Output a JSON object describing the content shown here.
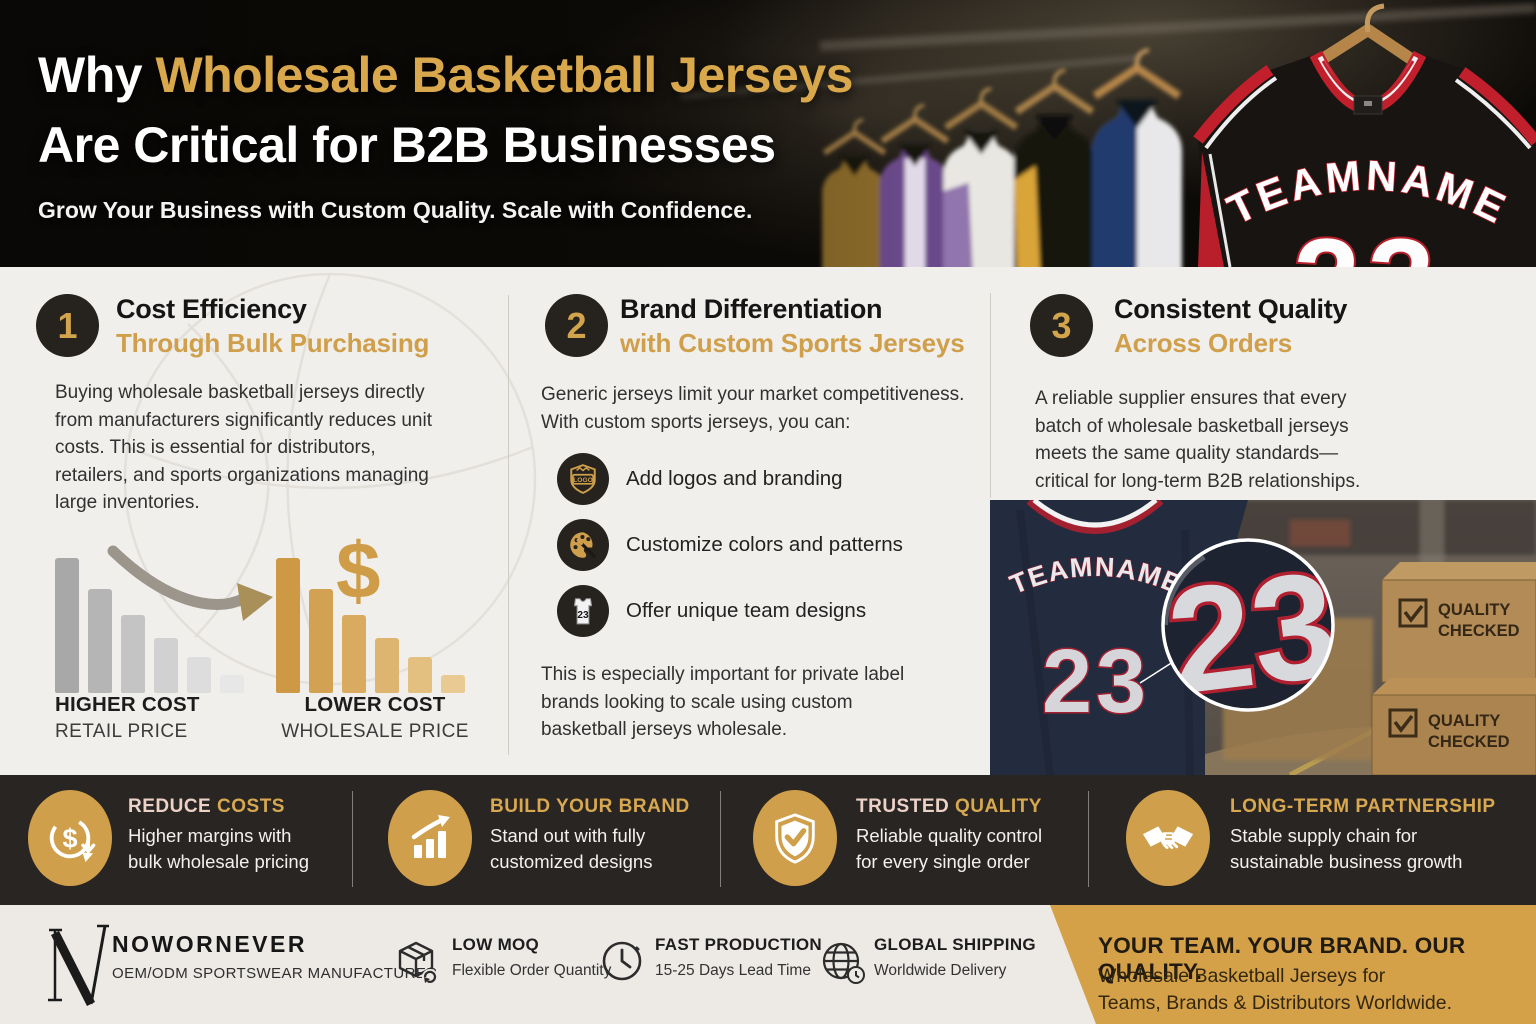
{
  "hero": {
    "title_white": "Why ",
    "title_gold": "Wholesale Basketball Jerseys",
    "title_line2": "Are Critical for B2B Businesses",
    "subtitle": "Grow Your Business with Custom Quality. Scale with Confidence.",
    "jersey_name": "TEAMNAME",
    "jersey_number": "23"
  },
  "sections": [
    {
      "number": "1",
      "title": "Cost Efficiency",
      "subtitle": "Through Bulk Purchasing",
      "body": "Buying wholesale basketball jerseys directly from manufacturers significantly reduces unit costs. This is essential for distributors, retailers, and sports organizations managing large inventories."
    },
    {
      "number": "2",
      "title": "Brand Differentiation",
      "subtitle": "with Custom Sports Jerseys",
      "body": "Generic jerseys limit your market competitiveness. With custom sports jerseys, you can:",
      "bullets": [
        {
          "icon": "logo-badge-icon",
          "badge_label": "LOGO",
          "text": "Add logos and branding"
        },
        {
          "icon": "palette-icon",
          "text": "Customize colors and patterns"
        },
        {
          "icon": "jersey-icon",
          "badge_label": "23",
          "text": "Offer unique team designs"
        }
      ],
      "closing": "This is especially important for private label brands looking to scale using custom basketball jerseys wholesale."
    },
    {
      "number": "3",
      "title": "Consistent Quality",
      "subtitle": "Across Orders",
      "body": "A reliable supplier ensures that every batch of wholesale basketball jerseys meets the same quality standards—critical for long-term B2B relationships."
    }
  ],
  "cost_chart": {
    "type": "bar",
    "left_title": "HIGHER COST",
    "left_subtitle": "RETAIL PRICE",
    "right_title": "LOWER COST",
    "right_subtitle": "WHOLESALE PRICE",
    "currency_symbol": "$",
    "relative_values": [
      100,
      77,
      58,
      41,
      27,
      13
    ],
    "retail_heights": [
      135,
      104,
      78,
      55,
      36,
      18
    ],
    "retail_colors": [
      "#a8a8a8",
      "#b5b5b5",
      "#c4c4c4",
      "#d1d1d1",
      "#dddddd",
      "#e7e7e7"
    ],
    "wholesale_heights": [
      135,
      104,
      78,
      55,
      36,
      18
    ],
    "wholesale_colors": [
      "#cd9944",
      "#d2a252",
      "#d8ab60",
      "#deb570",
      "#e3bf80",
      "#e9ca92"
    ]
  },
  "photo": {
    "jersey_name": "TEAMNAME",
    "jersey_number": "23",
    "magnified_number": "23",
    "box_label_line1": "QUALITY",
    "box_label_line2": "CHECKED"
  },
  "features": [
    {
      "icon": "dollar-cycle-icon",
      "title_light": "REDUCE ",
      "title_gold": "COSTS",
      "line1": "Higher margins with",
      "line2": "bulk wholesale pricing"
    },
    {
      "icon": "growth-chart-icon",
      "title_light": "",
      "title_gold": "BUILD YOUR BRAND",
      "line1": "Stand out with fully",
      "line2": "customized designs"
    },
    {
      "icon": "shield-check-icon",
      "title_light": "TRUSTED ",
      "title_gold": "QUALITY",
      "line1": "Reliable quality control",
      "line2": "for every single order"
    },
    {
      "icon": "handshake-icon",
      "title_light": "",
      "title_gold": "LONG-TERM PARTNERSHIP",
      "line1": "Stable supply chain for",
      "line2": "sustainable business growth"
    }
  ],
  "footer": {
    "brand": "NOWORNEVER",
    "brand_sub": "OEM/ODM SPORTSWEAR MANUFACTURER",
    "items": [
      {
        "icon": "package-icon",
        "title": "LOW MOQ",
        "desc": "Flexible Order Quantity"
      },
      {
        "icon": "clock-icon",
        "title": "FAST PRODUCTION",
        "desc": "15-25 Days Lead Time"
      },
      {
        "icon": "globe-icon",
        "title": "GLOBAL SHIPPING",
        "desc": "Worldwide Delivery"
      }
    ],
    "cta_title": "YOUR TEAM. YOUR BRAND. OUR QUALITY.",
    "cta_line1": "Wholesale Basketball Jerseys for",
    "cta_line2": "Teams, Brands & Distributors Worldwide."
  },
  "colors": {
    "gold": "#cf9f4b",
    "gold_panel": "#d4a149",
    "band_dark": "#292522",
    "badge_dark": "#26221e",
    "rose_accent": "#ecd2c6",
    "jersey_red": "#b81f2b"
  }
}
